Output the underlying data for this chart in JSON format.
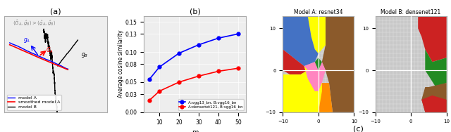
{
  "fig_width": 6.4,
  "fig_height": 1.88,
  "panel_a": {
    "title": "(a)",
    "legend": [
      "model A",
      "smoothed model A",
      "model B"
    ]
  },
  "panel_b": {
    "title": "(b)",
    "xlabel": "m",
    "ylabel": "Average cosine similarity",
    "x": [
      5,
      10,
      20,
      30,
      40,
      50
    ],
    "y_blue": [
      0.055,
      0.075,
      0.098,
      0.112,
      0.123,
      0.13
    ],
    "y_red": [
      0.02,
      0.035,
      0.05,
      0.06,
      0.068,
      0.073
    ],
    "legend_blue": "A:vgg13_bn, B:vgg16_bn",
    "legend_red": "A:densenet121, B:vgg16_bn",
    "ylim": [
      0.0,
      0.16
    ],
    "yticks": [
      0.0,
      0.03,
      0.05,
      0.08,
      0.1,
      0.13,
      0.15
    ],
    "xticks": [
      10,
      20,
      30,
      40,
      50
    ]
  },
  "panel_c": {
    "title_left": "Model A: resnet34",
    "title_right": "Model B: densenet121",
    "subtitle": "(c)",
    "xlim": [
      -10,
      10
    ],
    "ylim": [
      -10,
      13
    ],
    "xticks": [
      -10,
      0,
      10
    ],
    "yticks": [
      -10,
      0,
      10
    ],
    "resnet34_regions": {
      "gray_bg": "#c8c8c8",
      "blue": "#4472C4",
      "yellow": "#FFFF00",
      "brown": "#8B5A2B",
      "red": "#CC2222",
      "green": "#228B22",
      "pink": "#FF85C0",
      "orange": "#FF8C00"
    },
    "densenet121_regions": {
      "gray_bg": "#c8c8c8",
      "red": "#CC2222",
      "green": "#228B22",
      "brown": "#8B5A2B",
      "red2": "#CC2222"
    }
  }
}
